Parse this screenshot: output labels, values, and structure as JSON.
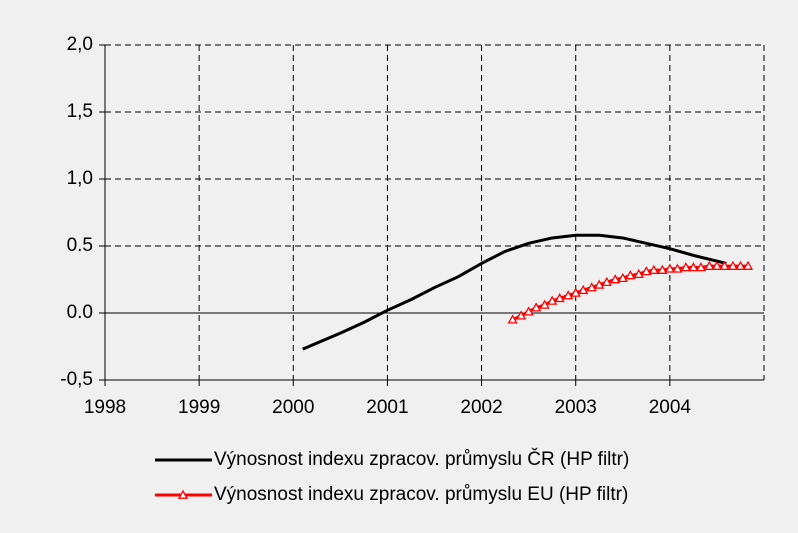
{
  "chart_data": {
    "type": "line",
    "xlim": [
      1998,
      2005
    ],
    "xticks": [
      1998,
      1999,
      2000,
      2001,
      2002,
      2003,
      2004
    ],
    "ylim": [
      -0.5,
      2.0
    ],
    "yticks": [
      {
        "value": -0.5,
        "label": "-0,5"
      },
      {
        "value": 0,
        "label": "0.0"
      },
      {
        "value": 0.5,
        "label": "0.5"
      },
      {
        "value": 1.0,
        "label": "1,0"
      },
      {
        "value": 1.5,
        "label": "1,5"
      },
      {
        "value": 2.0,
        "label": "2,0"
      }
    ],
    "grid": true,
    "legend": "bottom",
    "series": [
      {
        "name": "Výnosnost indexu zpracov. průmyslu ČR (HP filtr)",
        "color": "#000000",
        "marker": "none",
        "x": [
          2000.1,
          2000.5,
          2000.75,
          2001.0,
          2001.25,
          2001.5,
          2001.75,
          2002.0,
          2002.25,
          2002.5,
          2002.75,
          2003.0,
          2003.25,
          2003.5,
          2003.75,
          2004.0,
          2004.25,
          2004.6
        ],
        "values": [
          -0.27,
          -0.15,
          -0.07,
          0.02,
          0.1,
          0.19,
          0.27,
          0.37,
          0.46,
          0.52,
          0.56,
          0.58,
          0.58,
          0.56,
          0.52,
          0.48,
          0.43,
          0.37
        ]
      },
      {
        "name": "Výnosnost indexu zpracov. průmyslu EU (HP filtr)",
        "color": "#ff0000",
        "marker": "triangle",
        "x": [
          2002.33,
          2002.42,
          2002.5,
          2002.58,
          2002.67,
          2002.75,
          2002.83,
          2002.92,
          2003.0,
          2003.08,
          2003.17,
          2003.25,
          2003.33,
          2003.42,
          2003.5,
          2003.58,
          2003.67,
          2003.75,
          2003.83,
          2003.92,
          2004.0,
          2004.08,
          2004.17,
          2004.25,
          2004.33,
          2004.42,
          2004.5,
          2004.58,
          2004.67,
          2004.75,
          2004.83
        ],
        "values": [
          -0.05,
          -0.02,
          0.01,
          0.04,
          0.06,
          0.09,
          0.11,
          0.13,
          0.15,
          0.17,
          0.19,
          0.21,
          0.23,
          0.25,
          0.26,
          0.28,
          0.29,
          0.31,
          0.32,
          0.32,
          0.33,
          0.33,
          0.34,
          0.34,
          0.34,
          0.35,
          0.35,
          0.35,
          0.35,
          0.35,
          0.35
        ]
      }
    ]
  }
}
